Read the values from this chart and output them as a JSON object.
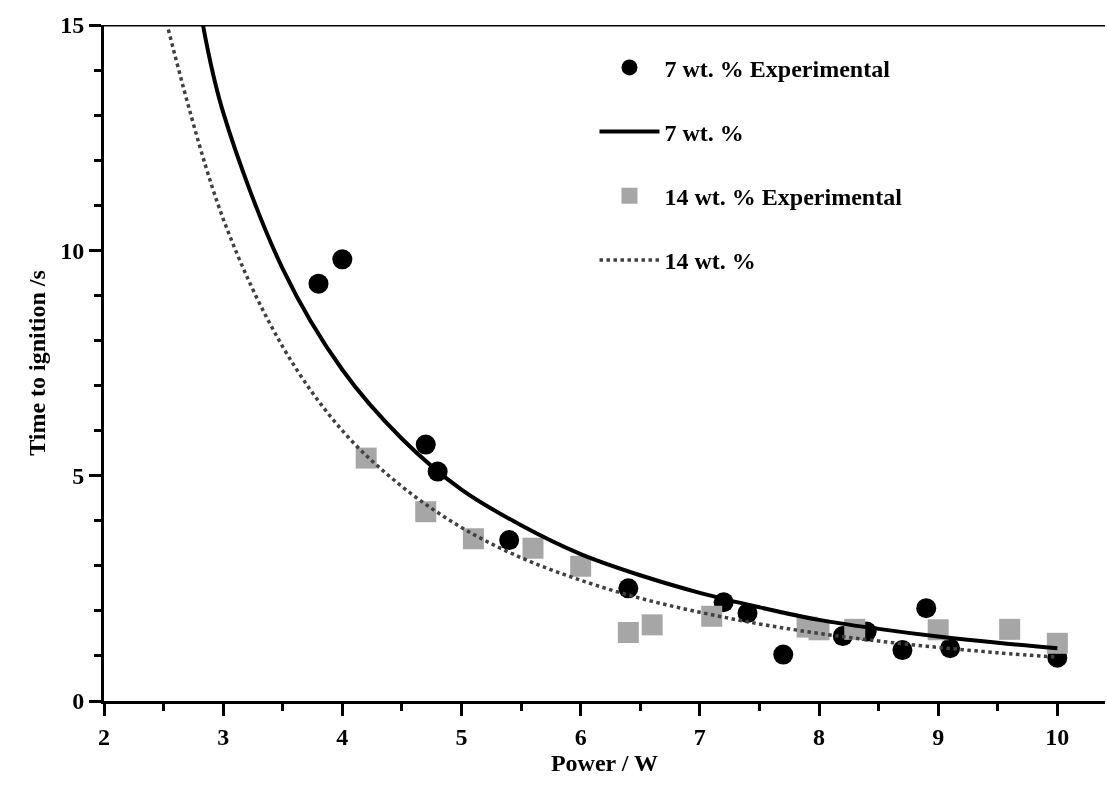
{
  "chart_data": {
    "type": "scatter",
    "xlabel": "Power / W",
    "ylabel": "Time to ignition /s",
    "xlim": [
      2,
      10.4
    ],
    "ylim": [
      0,
      15
    ],
    "xticks": [
      2,
      {
        "value": 2.5,
        "label": null
      },
      3,
      {
        "value": 3.5,
        "label": null
      },
      4,
      {
        "value": 4.5,
        "label": null
      },
      5,
      {
        "value": 5.5,
        "label": null
      },
      6,
      {
        "value": 6.5,
        "label": null
      },
      7,
      {
        "value": 7.5,
        "label": null
      },
      8,
      {
        "value": 8.5,
        "label": null
      },
      9,
      {
        "value": 9.5,
        "label": null
      },
      10
    ],
    "yticks": [
      0,
      {
        "value": 1,
        "label": null
      },
      {
        "value": 2,
        "label": null
      },
      {
        "value": 3,
        "label": null
      },
      {
        "value": 4,
        "label": null
      },
      5,
      {
        "value": 6,
        "label": null
      },
      {
        "value": 7,
        "label": null
      },
      {
        "value": 8,
        "label": null
      },
      {
        "value": 9,
        "label": null
      },
      10,
      {
        "value": 11,
        "label": null
      },
      {
        "value": 12,
        "label": null
      },
      {
        "value": 13,
        "label": null
      },
      {
        "value": 14,
        "label": null
      },
      15
    ],
    "legend": "top right",
    "series": [
      {
        "name": "7 wt. % Experimental",
        "marker": "circle",
        "color": "#000000",
        "x": [
          3.8,
          4.0,
          4.7,
          4.8,
          5.4,
          6.4,
          7.2,
          7.4,
          7.7,
          8.2,
          8.4,
          8.7,
          8.9,
          9.1,
          10.0
        ],
        "values": [
          9.26,
          9.8,
          5.69,
          5.09,
          3.57,
          2.5,
          2.19,
          1.95,
          1.03,
          1.44,
          1.54,
          1.13,
          2.06,
          1.17,
          0.96
        ]
      },
      {
        "name": "7 wt. %",
        "type": "line",
        "line_style": "solid",
        "color": "#000000",
        "x": [
          2.83,
          3.0,
          3.5,
          4.0,
          4.5,
          5.0,
          5.5,
          6.0,
          6.5,
          7.0,
          7.5,
          8.0,
          8.5,
          9.0,
          9.5,
          10.0
        ],
        "values": [
          15,
          13.06,
          9.59,
          7.35,
          5.82,
          4.69,
          3.9,
          3.26,
          2.79,
          2.4,
          2.08,
          1.8,
          1.6,
          1.43,
          1.29,
          1.17
        ]
      },
      {
        "name": "14 wt. % Experimental",
        "marker": "square",
        "color": "#a6a6a6",
        "x": [
          4.2,
          4.7,
          5.1,
          5.6,
          6.0,
          6.4,
          6.6,
          7.1,
          7.9,
          8.0,
          8.3,
          9.0,
          9.6,
          10.0
        ],
        "values": [
          5.39,
          4.2,
          3.6,
          3.39,
          2.99,
          1.52,
          1.69,
          1.88,
          1.64,
          1.58,
          1.59,
          1.58,
          1.59,
          1.28
        ]
      },
      {
        "name": "14 wt. %",
        "type": "line",
        "line_style": "dotted",
        "color": "#404040",
        "x": [
          2.54,
          3.0,
          3.5,
          4.0,
          4.5,
          5.0,
          5.5,
          6.0,
          6.5,
          7.0,
          7.5,
          8.0,
          8.5,
          9.0,
          9.5,
          10.0
        ],
        "values": [
          14.9,
          10.7,
          7.86,
          6.0,
          4.76,
          3.85,
          3.18,
          2.68,
          2.28,
          1.97,
          1.71,
          1.5,
          1.33,
          1.19,
          1.07,
          0.97
        ]
      }
    ]
  }
}
